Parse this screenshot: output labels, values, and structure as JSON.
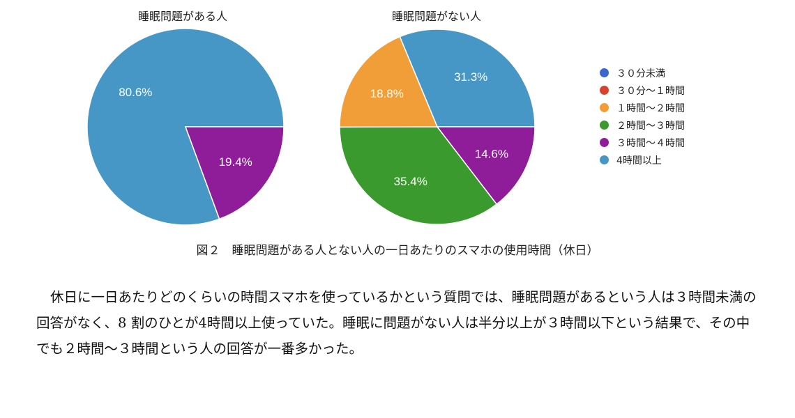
{
  "chart_data": [
    {
      "type": "pie",
      "title": "睡眠問題がある人",
      "slices": [
        {
          "category": "4時間以上",
          "value": 80.6,
          "label": "80.6%"
        },
        {
          "category": "３時間～４時間",
          "value": 19.4,
          "label": "19.4%"
        }
      ]
    },
    {
      "type": "pie",
      "title": "睡眠問題がない人",
      "slices": [
        {
          "category": "4時間以上",
          "value": 31.3,
          "label": "31.3%"
        },
        {
          "category": "１時間～２時間",
          "value": 18.8,
          "label": "18.8%"
        },
        {
          "category": "２時間～３時間",
          "value": 35.4,
          "label": "35.4%"
        },
        {
          "category": "３時間～４時間",
          "value": 14.6,
          "label": "14.6%"
        }
      ]
    }
  ],
  "legend": [
    {
      "label": "３０分未満",
      "color": "#3b66cf"
    },
    {
      "label": "３０分～１時間",
      "color": "#d8432e"
    },
    {
      "label": "１時間～２時間",
      "color": "#f29e38"
    },
    {
      "label": "２時間～３時間",
      "color": "#3b9a2e"
    },
    {
      "label": "３時間～４時間",
      "color": "#8f1c99"
    },
    {
      "label": "4時間以上",
      "color": "#4697c6"
    }
  ],
  "legend_placement": "right",
  "caption": "図２　睡眠問題がある人とない人の一日あたりのスマホの使用時間（休日）",
  "paragraph": "休日に一日あたりどのくらいの時間スマホを使っているかという質問では、睡眠問題があるという人は３時間未満の回答がなく、8 割のひとが4時間以上使っていた。睡眠に問題がない人は半分以上が３時間以下という結果で、その中でも２時間～３時間という人の回答が一番多かった。"
}
